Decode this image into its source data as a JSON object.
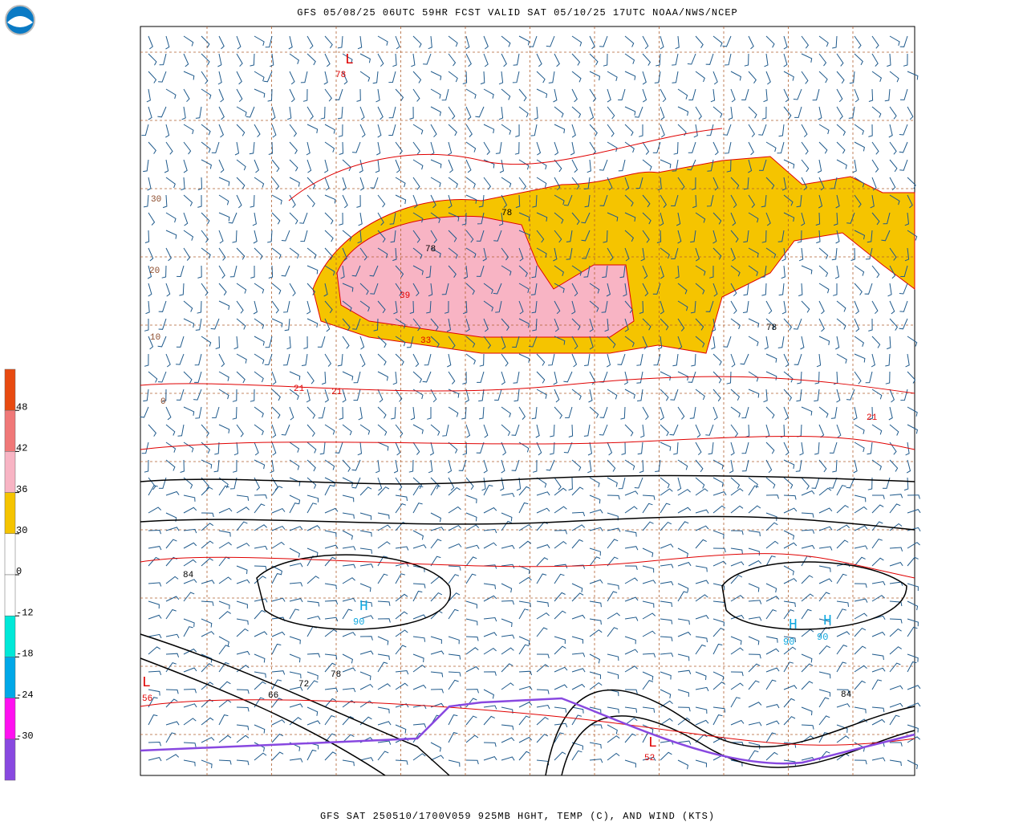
{
  "header": {
    "title": "GFS 05/08/25 06UTC 59HR FCST VALID SAT 05/10/25 17UTC NOAA/NWS/NCEP"
  },
  "footer": {
    "caption": "GFS SAT 250510/1700V059 925MB HGHT, TEMP (C), AND WIND (KTS)"
  },
  "colorbar": {
    "colors": [
      "#e84a10",
      "#f07878",
      "#f8b4c4",
      "#f5c400",
      "#ffffff",
      "#ffffff",
      "#00e8d8",
      "#00a8e8",
      "#ff10f0",
      "#8848e0"
    ],
    "labels": [
      48,
      42,
      36,
      30,
      0,
      -12,
      -18,
      -24,
      -30
    ]
  },
  "map": {
    "labels": [
      "L",
      "78",
      "H",
      "90",
      "H",
      "90",
      "H",
      "90",
      "L",
      "56",
      "78",
      "78",
      "78",
      "39",
      "33",
      "21",
      "21",
      "21",
      "84",
      "66",
      "72",
      "L",
      "52",
      "30",
      "20",
      "10",
      "0",
      "78",
      "84"
    ]
  }
}
